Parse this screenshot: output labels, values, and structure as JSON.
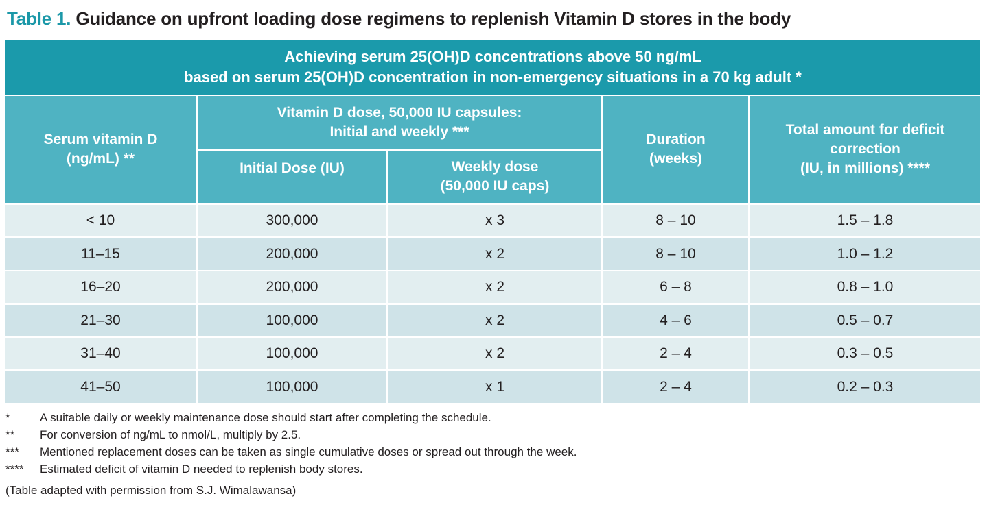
{
  "title": {
    "label": "Table 1.",
    "text": "Guidance on upfront loading dose regimens to replenish Vitamin D stores in the body"
  },
  "banner": {
    "line1": "Achieving serum 25(OH)D concentrations above 50 ng/mL",
    "line2": "based on serum 25(OH)D concentration in non-emergency situations in a 70 kg adult *"
  },
  "headers": {
    "serum": "Serum vitamin D\n(ng/mL) **",
    "dose_group": "Vitamin D dose, 50,000 IU capsules:\nInitial and weekly ***",
    "initial": "Initial Dose (IU)",
    "weekly": "Weekly dose\n(50,000 IU caps)",
    "duration": "Duration\n(weeks)",
    "total": "Total amount for deficit\ncorrection\n(IU, in millions) ****"
  },
  "rows": [
    [
      "< 10",
      "300,000",
      "x 3",
      "8 – 10",
      "1.5 – 1.8"
    ],
    [
      "11–15",
      "200,000",
      "x 2",
      "8 – 10",
      "1.0 – 1.2"
    ],
    [
      "16–20",
      "200,000",
      "x 2",
      "6 – 8",
      "0.8 – 1.0"
    ],
    [
      "21–30",
      "100,000",
      "x 2",
      "4 – 6",
      "0.5 – 0.7"
    ],
    [
      "31–40",
      "100,000",
      "x 2",
      "2 – 4",
      "0.3 – 0.5"
    ],
    [
      "41–50",
      "100,000",
      "x 1",
      "2 – 4",
      "0.2 – 0.3"
    ]
  ],
  "footnotes": [
    {
      "mark": "*",
      "text": "A suitable daily or weekly maintenance dose should start after completing the schedule."
    },
    {
      "mark": "**",
      "text": "For conversion of ng/mL to nmol/L, multiply by 2.5."
    },
    {
      "mark": "***",
      "text": "Mentioned replacement doses can be taken as single cumulative doses or spread out through the week."
    },
    {
      "mark": "****",
      "text": "Estimated deficit of vitamin D needed to replenish body stores."
    }
  ],
  "source": "(Table adapted with permission from S.J. Wimalawansa)",
  "colors": {
    "banner": "#1b9aab",
    "header": "#4fb3c2",
    "row_light": "#e2eef0",
    "row_dark": "#cfe3e8",
    "title_label": "#1b98a8"
  }
}
